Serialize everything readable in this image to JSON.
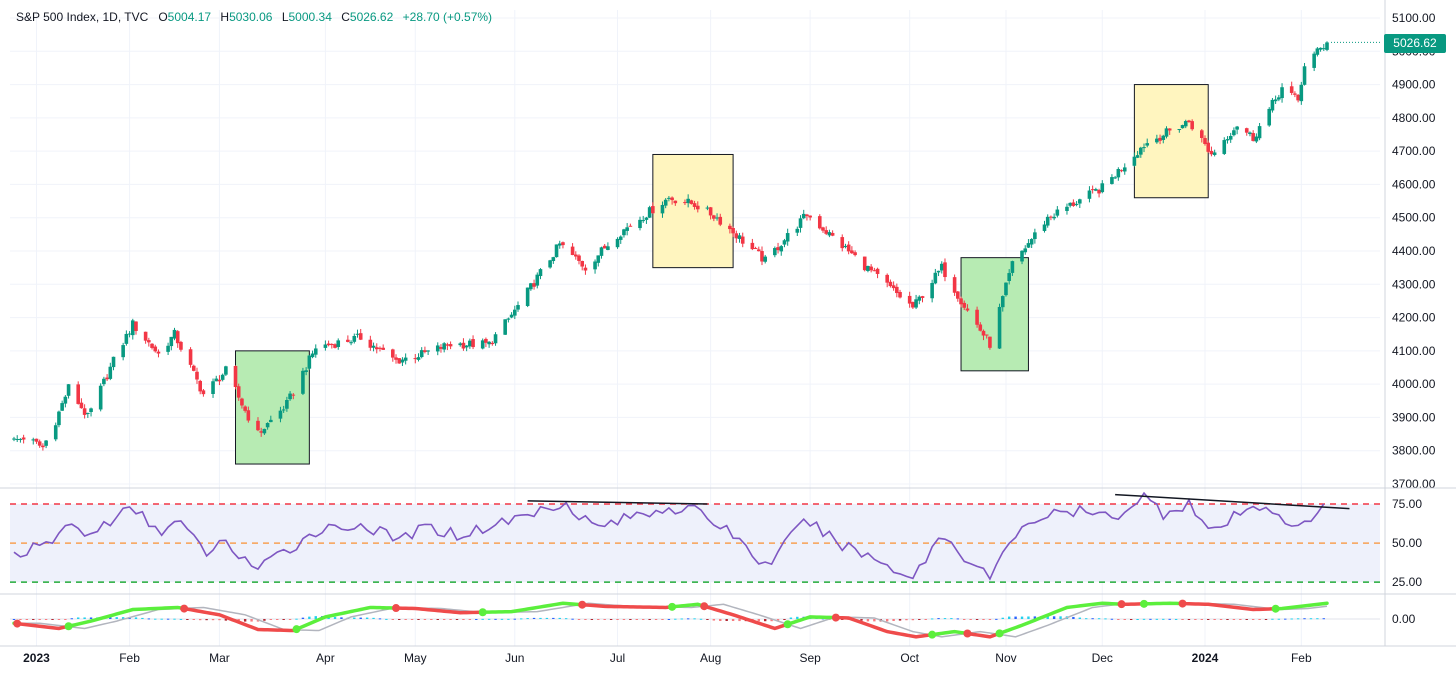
{
  "header": {
    "symbol": "S&P 500 Index, 1D, TVC",
    "open_label": "O",
    "open": "5004.17",
    "high_label": "H",
    "high": "5030.06",
    "low_label": "L",
    "low": "5000.34",
    "close_label": "C",
    "close": "5026.62",
    "change": "+28.70 (+0.57%)"
  },
  "last_price_tag": "5026.62",
  "colors": {
    "up": "#089981",
    "down": "#f23645",
    "green_box": "#b7ebb3",
    "yellow_box": "#fff5bf",
    "rsi_line": "#7e57c2",
    "rsi_bg": "#eef1fb",
    "overbought": "#f23645",
    "midline": "#f7a154",
    "oversold": "#22ab3a",
    "wave_up": "#5bef3c",
    "wave_down": "#ef4b4b",
    "signal": "#b2b5be"
  },
  "chart_data": [
    {
      "type": "candlestick",
      "title": "S&P 500 Index, 1D, TVC",
      "ylim": [
        3700,
        5100
      ],
      "y_ticks": [
        "5100.00",
        "5000.00",
        "4900.00",
        "4800.00",
        "4700.00",
        "4600.00",
        "4500.00",
        "4400.00",
        "4300.00",
        "4200.00",
        "4100.00",
        "4000.00",
        "3900.00",
        "3800.00",
        "3700.00"
      ],
      "x_ticks": [
        "2023",
        "Feb",
        "Mar",
        "Apr",
        "May",
        "Jun",
        "Jul",
        "Aug",
        "Sep",
        "Oct",
        "Nov",
        "Dec",
        "2024",
        "Feb"
      ],
      "x_tick_dates": [
        "2023-01-03",
        "2023-02-01",
        "2023-03-01",
        "2023-04-03",
        "2023-05-01",
        "2023-06-01",
        "2023-07-03",
        "2023-08-01",
        "2023-09-01",
        "2023-10-02",
        "2023-11-01",
        "2023-12-01",
        "2024-01-02",
        "2024-02-01"
      ],
      "close_path": [
        [
          "2022-12-27",
          3830
        ],
        [
          "2022-12-30",
          3840
        ],
        [
          "2023-01-05",
          3810
        ],
        [
          "2023-01-09",
          3890
        ],
        [
          "2023-01-13",
          3990
        ],
        [
          "2023-01-19",
          3900
        ],
        [
          "2023-01-27",
          4070
        ],
        [
          "2023-02-02",
          4180
        ],
        [
          "2023-02-10",
          4090
        ],
        [
          "2023-02-15",
          4150
        ],
        [
          "2023-02-24",
          3970
        ],
        [
          "2023-03-03",
          4040
        ],
        [
          "2023-03-09",
          3920
        ],
        [
          "2023-03-13",
          3850
        ],
        [
          "2023-03-22",
          3940
        ],
        [
          "2023-03-31",
          4110
        ],
        [
          "2023-04-14",
          4140
        ],
        [
          "2023-04-25",
          4070
        ],
        [
          "2023-05-03",
          4090
        ],
        [
          "2023-05-12",
          4120
        ],
        [
          "2023-05-24",
          4120
        ],
        [
          "2023-06-01",
          4220
        ],
        [
          "2023-06-15",
          4420
        ],
        [
          "2023-06-23",
          4350
        ],
        [
          "2023-07-03",
          4450
        ],
        [
          "2023-07-19",
          4560
        ],
        [
          "2023-07-27",
          4540
        ],
        [
          "2023-08-03",
          4500
        ],
        [
          "2023-08-18",
          4370
        ],
        [
          "2023-08-31",
          4510
        ],
        [
          "2023-09-07",
          4450
        ],
        [
          "2023-09-21",
          4330
        ],
        [
          "2023-10-03",
          4230
        ],
        [
          "2023-10-12",
          4350
        ],
        [
          "2023-10-20",
          4220
        ],
        [
          "2023-10-27",
          4120
        ],
        [
          "2023-11-03",
          4360
        ],
        [
          "2023-11-14",
          4500
        ],
        [
          "2023-12-01",
          4590
        ],
        [
          "2023-12-14",
          4720
        ],
        [
          "2023-12-28",
          4790
        ],
        [
          "2024-01-04",
          4690
        ],
        [
          "2024-01-12",
          4780
        ],
        [
          "2024-01-17",
          4740
        ],
        [
          "2024-01-26",
          4890
        ],
        [
          "2024-01-31",
          4850
        ],
        [
          "2024-02-02",
          4960
        ],
        [
          "2024-02-09",
          5026.62
        ]
      ],
      "last": {
        "date": "2024-02-09",
        "open": 5004.17,
        "high": 5030.06,
        "low": 5000.34,
        "close": 5026.62
      },
      "highlight_boxes": [
        {
          "color": "green",
          "from": "2023-03-06",
          "to": "2023-03-29",
          "ylim": [
            3760,
            4100
          ]
        },
        {
          "color": "yellow",
          "from": "2023-07-14",
          "to": "2023-08-08",
          "ylim": [
            4350,
            4690
          ]
        },
        {
          "color": "green",
          "from": "2023-10-18",
          "to": "2023-11-08",
          "ylim": [
            4040,
            4380
          ]
        },
        {
          "color": "yellow",
          "from": "2023-12-11",
          "to": "2024-01-03",
          "ylim": [
            4560,
            4900
          ]
        }
      ]
    },
    {
      "type": "line",
      "ylim": [
        20,
        82
      ],
      "y_ticks": [
        "75.00",
        "50.00",
        "25.00"
      ],
      "levels": [
        75,
        50,
        25
      ],
      "series": [
        {
          "values": [
            [
              "2022-12-27",
              43
            ],
            [
              "2023-01-06",
              48
            ],
            [
              "2023-01-13",
              62
            ],
            [
              "2023-01-20",
              55
            ],
            [
              "2023-01-27",
              66
            ],
            [
              "2023-02-02",
              72
            ],
            [
              "2023-02-10",
              58
            ],
            [
              "2023-02-17",
              63
            ],
            [
              "2023-02-24",
              44
            ],
            [
              "2023-03-03",
              50
            ],
            [
              "2023-03-13",
              33
            ],
            [
              "2023-03-24",
              48
            ],
            [
              "2023-03-31",
              58
            ],
            [
              "2023-04-14",
              62
            ],
            [
              "2023-04-25",
              52
            ],
            [
              "2023-05-05",
              60
            ],
            [
              "2023-05-15",
              55
            ],
            [
              "2023-05-26",
              62
            ],
            [
              "2023-06-08",
              70
            ],
            [
              "2023-06-16",
              77
            ],
            [
              "2023-06-26",
              60
            ],
            [
              "2023-07-06",
              66
            ],
            [
              "2023-07-18",
              73
            ],
            [
              "2023-07-28",
              70
            ],
            [
              "2023-08-08",
              56
            ],
            [
              "2023-08-18",
              35
            ],
            [
              "2023-08-31",
              65
            ],
            [
              "2023-09-08",
              52
            ],
            [
              "2023-09-21",
              40
            ],
            [
              "2023-10-03",
              28
            ],
            [
              "2023-10-12",
              56
            ],
            [
              "2023-10-20",
              40
            ],
            [
              "2023-10-27",
              28
            ],
            [
              "2023-11-06",
              62
            ],
            [
              "2023-11-15",
              68
            ],
            [
              "2023-11-24",
              70
            ],
            [
              "2023-12-04",
              66
            ],
            [
              "2023-12-14",
              80
            ],
            [
              "2023-12-20",
              69
            ],
            [
              "2023-12-28",
              76
            ],
            [
              "2024-01-04",
              55
            ],
            [
              "2024-01-12",
              68
            ],
            [
              "2024-01-22",
              74
            ],
            [
              "2024-01-31",
              58
            ],
            [
              "2024-02-09",
              74
            ]
          ]
        }
      ],
      "trendlines": [
        {
          "from": [
            "2023-06-05",
            77
          ],
          "to": [
            "2023-07-31",
            75
          ]
        },
        {
          "from": [
            "2023-12-05",
            81
          ],
          "to": [
            "2024-02-16",
            72
          ]
        }
      ]
    },
    {
      "type": "line",
      "ylim": [
        -1,
        1
      ],
      "y_ticks": [
        "0.00"
      ],
      "series": [
        {
          "values": [
            [
              "2022-12-27",
              -0.2
            ],
            [
              "2023-01-10",
              -0.45
            ],
            [
              "2023-01-20",
              -0.1
            ],
            [
              "2023-02-02",
              0.45
            ],
            [
              "2023-02-16",
              0.55
            ],
            [
              "2023-03-01",
              0.2
            ],
            [
              "2023-03-13",
              -0.5
            ],
            [
              "2023-03-24",
              -0.55
            ],
            [
              "2023-04-03",
              0.1
            ],
            [
              "2023-04-17",
              0.55
            ],
            [
              "2023-05-01",
              0.5
            ],
            [
              "2023-05-15",
              0.3
            ],
            [
              "2023-05-31",
              0.35
            ],
            [
              "2023-06-16",
              0.75
            ],
            [
              "2023-06-29",
              0.6
            ],
            [
              "2023-07-18",
              0.55
            ],
            [
              "2023-07-28",
              0.7
            ],
            [
              "2023-08-08",
              0.2
            ],
            [
              "2023-08-21",
              -0.45
            ],
            [
              "2023-09-01",
              0.1
            ],
            [
              "2023-09-13",
              0.05
            ],
            [
              "2023-09-25",
              -0.6
            ],
            [
              "2023-10-04",
              -0.85
            ],
            [
              "2023-10-16",
              -0.6
            ],
            [
              "2023-10-27",
              -0.85
            ],
            [
              "2023-11-06",
              -0.3
            ],
            [
              "2023-11-20",
              0.55
            ],
            [
              "2023-12-01",
              0.75
            ],
            [
              "2023-12-08",
              0.7
            ],
            [
              "2023-12-22",
              0.75
            ],
            [
              "2024-01-03",
              0.7
            ],
            [
              "2024-01-17",
              0.45
            ],
            [
              "2024-01-26",
              0.5
            ],
            [
              "2024-02-09",
              0.75
            ]
          ]
        }
      ]
    }
  ]
}
